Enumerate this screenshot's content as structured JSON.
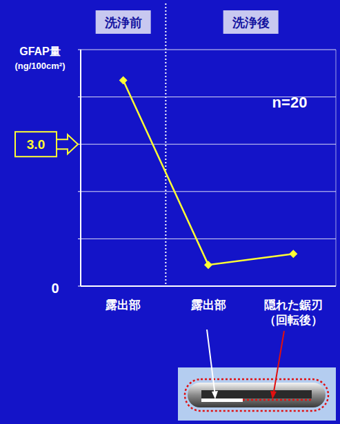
{
  "chart_data": {
    "type": "line",
    "categories": [
      "露出部",
      "露出部",
      "隠れた鋸刃（回転後）"
    ],
    "values": [
      4.35,
      0.45,
      0.68
    ],
    "color": "#ffff33",
    "marker": "diamond",
    "ylim": [
      0,
      5
    ],
    "yticks": [
      0,
      {
        "value": 1,
        "label": null
      },
      {
        "value": 2,
        "label": null
      },
      {
        "value": 3,
        "label": "3.0"
      },
      {
        "value": 4,
        "label": null
      },
      {
        "value": 5,
        "label": null
      }
    ],
    "y_label": "GFAP量(ng/100cm²)",
    "annotations": [
      {
        "text": "n=20"
      }
    ],
    "groups": [
      {
        "label": "洗浄前",
        "span": [
          0,
          0
        ]
      },
      {
        "label": "洗浄後",
        "span": [
          1,
          2
        ]
      }
    ],
    "grid": true
  }
}
